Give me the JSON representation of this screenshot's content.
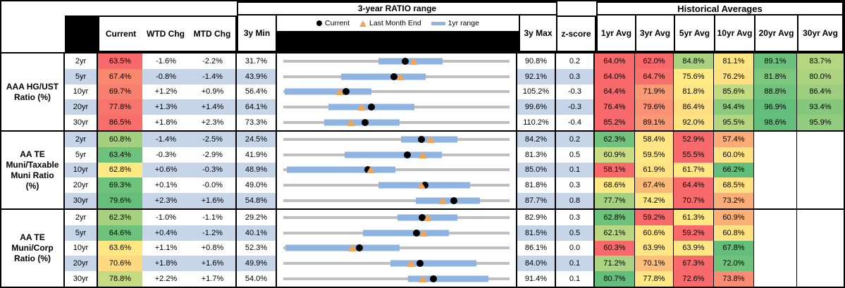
{
  "header": {
    "col_current": "Current",
    "col_wtd": "WTD Chg",
    "col_mtd": "MTD Chg",
    "col_min": "3y Min",
    "col_max": "3y Max",
    "col_z": "z-score",
    "range_title": "3-year RATIO range",
    "hist_title": "Historical Averages",
    "avg_cols": [
      "1yr Avg",
      "3yr Avg",
      "5yr Avg",
      "10yr Avg",
      "20yr Avg",
      "30yr Avg"
    ],
    "legend": [
      {
        "marker": "black-dot",
        "label": "Current"
      },
      {
        "marker": "orange-triangle",
        "label": "Last Month End"
      },
      {
        "marker": "blue-bar",
        "label": "1yr range"
      }
    ]
  },
  "colors": {
    "row_band": "#C6D5E8",
    "range_bar_blue": "#8FB4E2",
    "range_line_gray": "#BFBFBF",
    "triangle_orange": "#F2A354",
    "dot_black": "#000000",
    "scale_red": "#F8696B",
    "scale_yellow": "#FFEB84",
    "scale_green": "#63BE7B"
  },
  "chart_data": {
    "type": "table",
    "note": "Each row has a bullet chart: bar=[1yr range start,end], dot=Current, tri=Last Month End as fractions of span from 3y Min to 3y Max",
    "groups": [
      {
        "label": "AAA HG/UST\nRatio (%)",
        "rows": [
          {
            "tenor": "2yr",
            "current": "63.5%",
            "current_color": "#F8696B",
            "wtd": "-1.6%",
            "mtd": "-2.2%",
            "min": "31.7%",
            "max": "90.8%",
            "z": "0.2",
            "bar": [
              0.42,
              0.705
            ],
            "dot": 0.54,
            "tri": 0.575,
            "avgs": [
              {
                "v": "64.0%",
                "c": "#F8696B"
              },
              {
                "v": "62.0%",
                "c": "#F8696B"
              },
              {
                "v": "84.8%",
                "c": "#A8D27F"
              },
              {
                "v": "81.1%",
                "c": "#FFE483"
              },
              {
                "v": "89.1%",
                "c": "#6BC17B"
              },
              {
                "v": "83.7%",
                "c": "#B7D681"
              }
            ]
          },
          {
            "tenor": "5yr",
            "current": "67.4%",
            "current_color": "#F9886F",
            "wtd": "-0.8%",
            "mtd": "-1.4%",
            "min": "43.9%",
            "max": "92.1%",
            "z": "0.3",
            "bar": [
              0.255,
              0.63
            ],
            "dot": 0.49,
            "tri": 0.518,
            "avgs": [
              {
                "v": "64.0%",
                "c": "#F8696B"
              },
              {
                "v": "64.7%",
                "c": "#F8716C"
              },
              {
                "v": "75.6%",
                "c": "#FFEB84"
              },
              {
                "v": "76.2%",
                "c": "#FFE083"
              },
              {
                "v": "81.8%",
                "c": "#7DC67D"
              },
              {
                "v": "80.0%",
                "c": "#ABD380"
              }
            ]
          },
          {
            "tenor": "10yr",
            "current": "69.7%",
            "current_color": "#F8806F",
            "wtd": "+1.2%",
            "mtd": "+0.9%",
            "min": "56.4%",
            "max": "105.2%",
            "z": "-0.3",
            "bar": [
              0.005,
              0.39
            ],
            "dot": 0.277,
            "tri": 0.25,
            "avgs": [
              {
                "v": "64.4%",
                "c": "#F8696B"
              },
              {
                "v": "71.9%",
                "c": "#FA9B75"
              },
              {
                "v": "81.8%",
                "c": "#FFE784"
              },
              {
                "v": "85.6%",
                "c": "#C2DA81"
              },
              {
                "v": "88.8%",
                "c": "#70C37C"
              },
              {
                "v": "86.4%",
                "c": "#9DCF7E"
              }
            ]
          },
          {
            "tenor": "20yr",
            "current": "77.8%",
            "current_color": "#F8756D",
            "wtd": "+1.3%",
            "mtd": "+1.4%",
            "min": "64.1%",
            "max": "99.6%",
            "z": "-0.3",
            "bar": [
              0.2,
              0.58
            ],
            "dot": 0.388,
            "tri": 0.345,
            "avgs": [
              {
                "v": "76.4%",
                "c": "#F8696B"
              },
              {
                "v": "79.6%",
                "c": "#FA9174"
              },
              {
                "v": "86.4%",
                "c": "#FFDD82"
              },
              {
                "v": "94.4%",
                "c": "#8CCA7E"
              },
              {
                "v": "96.9%",
                "c": "#63BE7B"
              },
              {
                "v": "93.4%",
                "c": "#85C87D"
              }
            ]
          },
          {
            "tenor": "30yr",
            "current": "86.5%",
            "current_color": "#F86E6B",
            "wtd": "+1.8%",
            "mtd": "+2.3%",
            "min": "73.3%",
            "max": "110.2%",
            "z": "-0.4",
            "bar": [
              0.18,
              0.515
            ],
            "dot": 0.36,
            "tri": 0.3,
            "avgs": [
              {
                "v": "85.2%",
                "c": "#F8696B"
              },
              {
                "v": "89.1%",
                "c": "#FA9A75"
              },
              {
                "v": "92.0%",
                "c": "#FFE383"
              },
              {
                "v": "95.5%",
                "c": "#B3D580"
              },
              {
                "v": "98.6%",
                "c": "#63BE7B"
              },
              {
                "v": "95.9%",
                "c": "#92CC7E"
              }
            ]
          }
        ]
      },
      {
        "label": "AA TE\nMuni/Taxable\nMuni Ratio\n(%)",
        "rows": [
          {
            "tenor": "2yr",
            "current": "60.8%",
            "current_color": "#A2D07F",
            "wtd": "-1.4%",
            "mtd": "-2.5%",
            "min": "24.5%",
            "max": "84.2%",
            "z": "0.2",
            "bar": [
              0.52,
              0.77
            ],
            "dot": 0.61,
            "tri": 0.65,
            "avgs": [
              {
                "v": "62.3%",
                "c": "#70C37C"
              },
              {
                "v": "58.4%",
                "c": "#FFE583"
              },
              {
                "v": "52.9%",
                "c": "#F8696B"
              },
              {
                "v": "57.4%",
                "c": "#FBAC77"
              },
              null,
              null
            ]
          },
          {
            "tenor": "5yr",
            "current": "63.4%",
            "current_color": "#6FC27C",
            "wtd": "-0.3%",
            "mtd": "-2.9%",
            "min": "41.9%",
            "max": "81.3%",
            "z": "0.5",
            "bar": [
              0.27,
              0.7
            ],
            "dot": 0.548,
            "tri": 0.618,
            "avgs": [
              {
                "v": "60.9%",
                "c": "#CCDC82"
              },
              {
                "v": "59.5%",
                "c": "#FFE884"
              },
              {
                "v": "55.5%",
                "c": "#F8696B"
              },
              {
                "v": "60.0%",
                "c": "#FFE383"
              },
              null,
              null
            ]
          },
          {
            "tenor": "10yr",
            "current": "62.8%",
            "current_color": "#FFE984",
            "wtd": "+0.6%",
            "mtd": "-0.3%",
            "min": "48.9%",
            "max": "85.0%",
            "z": "0.1",
            "bar": [
              0.015,
              0.495
            ],
            "dot": 0.375,
            "tri": 0.387,
            "avgs": [
              {
                "v": "58.1%",
                "c": "#F8696B"
              },
              {
                "v": "61.9%",
                "c": "#FFE383"
              },
              {
                "v": "61.7%",
                "c": "#FFE784"
              },
              {
                "v": "66.2%",
                "c": "#63BE7B"
              },
              null,
              null
            ]
          },
          {
            "tenor": "20yr",
            "current": "69.3%",
            "current_color": "#70C37C",
            "wtd": "+0.1%",
            "mtd": "-0.0%",
            "min": "49.0%",
            "max": "81.8%",
            "z": "0.3",
            "bar": [
              0.42,
              0.825
            ],
            "dot": 0.625,
            "tri": 0.612,
            "avgs": [
              {
                "v": "68.6%",
                "c": "#FFE884"
              },
              {
                "v": "67.4%",
                "c": "#FBB97A"
              },
              {
                "v": "64.4%",
                "c": "#F8696B"
              },
              {
                "v": "68.5%",
                "c": "#FFE082"
              },
              null,
              null
            ]
          },
          {
            "tenor": "30yr",
            "current": "79.6%",
            "current_color": "#66BF7B",
            "wtd": "+2.3%",
            "mtd": "+1.6%",
            "min": "54.8%",
            "max": "87.7%",
            "z": "0.8",
            "bar": [
              0.585,
              0.868
            ],
            "dot": 0.753,
            "tri": 0.705,
            "avgs": [
              {
                "v": "77.7%",
                "c": "#A5D17F"
              },
              {
                "v": "74.2%",
                "c": "#FFE884"
              },
              {
                "v": "70.7%",
                "c": "#F8696B"
              },
              {
                "v": "73.2%",
                "c": "#FBAD78"
              },
              null,
              null
            ]
          }
        ]
      },
      {
        "label": "AA TE\nMuni/Corp\nRatio (%)",
        "rows": [
          {
            "tenor": "2yr",
            "current": "62.3%",
            "current_color": "#A6D27F",
            "wtd": "-1.0%",
            "mtd": "-1.1%",
            "min": "29.2%",
            "max": "82.9%",
            "z": "0.3",
            "bar": [
              0.505,
              0.77
            ],
            "dot": 0.615,
            "tri": 0.64,
            "avgs": [
              {
                "v": "62.8%",
                "c": "#6EC27B"
              },
              {
                "v": "59.2%",
                "c": "#F8696B"
              },
              {
                "v": "61.3%",
                "c": "#FFE884"
              },
              {
                "v": "60.9%",
                "c": "#FBB078"
              },
              null,
              null
            ]
          },
          {
            "tenor": "5yr",
            "current": "64.6%",
            "current_color": "#6EC27B",
            "wtd": "+0.4%",
            "mtd": "-1.2%",
            "min": "40.1%",
            "max": "81.5%",
            "z": "0.5",
            "bar": [
              0.353,
              0.733
            ],
            "dot": 0.59,
            "tri": 0.62,
            "avgs": [
              {
                "v": "62.1%",
                "c": "#B9D781"
              },
              {
                "v": "60.6%",
                "c": "#FFE483"
              },
              {
                "v": "59.2%",
                "c": "#F8696B"
              },
              {
                "v": "60.8%",
                "c": "#FFE283"
              },
              null,
              null
            ]
          },
          {
            "tenor": "10yr",
            "current": "63.6%",
            "current_color": "#FFE884",
            "wtd": "+1.1%",
            "mtd": "+0.8%",
            "min": "52.3%",
            "max": "86.1%",
            "z": "0.0",
            "bar": [
              0.008,
              0.513
            ],
            "dot": 0.338,
            "tri": 0.305,
            "avgs": [
              {
                "v": "60.3%",
                "c": "#F8696B"
              },
              {
                "v": "63.9%",
                "c": "#FFE584"
              },
              {
                "v": "63.9%",
                "c": "#FFE884"
              },
              {
                "v": "67.8%",
                "c": "#63BE7B"
              },
              null,
              null
            ]
          },
          {
            "tenor": "20yr",
            "current": "70.6%",
            "current_color": "#FFD981",
            "wtd": "+1.8%",
            "mtd": "+1.6%",
            "min": "49.9%",
            "max": "84.0%",
            "z": "0.1",
            "bar": [
              0.475,
              0.853
            ],
            "dot": 0.605,
            "tri": 0.563,
            "avgs": [
              {
                "v": "71.2%",
                "c": "#A9D380"
              },
              {
                "v": "70.1%",
                "c": "#FBBE7B"
              },
              {
                "v": "67.3%",
                "c": "#F8696B"
              },
              {
                "v": "72.0%",
                "c": "#6EC27B"
              },
              null,
              null
            ]
          },
          {
            "tenor": "30yr",
            "current": "78.8%",
            "current_color": "#C5DB82",
            "wtd": "+2.2%",
            "mtd": "+1.7%",
            "min": "54.0%",
            "max": "91.4%",
            "z": "0.1",
            "bar": [
              0.55,
              0.905
            ],
            "dot": 0.663,
            "tri": 0.618,
            "avgs": [
              {
                "v": "80.7%",
                "c": "#63BE7B"
              },
              {
                "v": "77.8%",
                "c": "#FFE884"
              },
              {
                "v": "72.6%",
                "c": "#F8696B"
              },
              {
                "v": "73.8%",
                "c": "#F98C72"
              },
              null,
              null
            ]
          }
        ]
      }
    ]
  }
}
